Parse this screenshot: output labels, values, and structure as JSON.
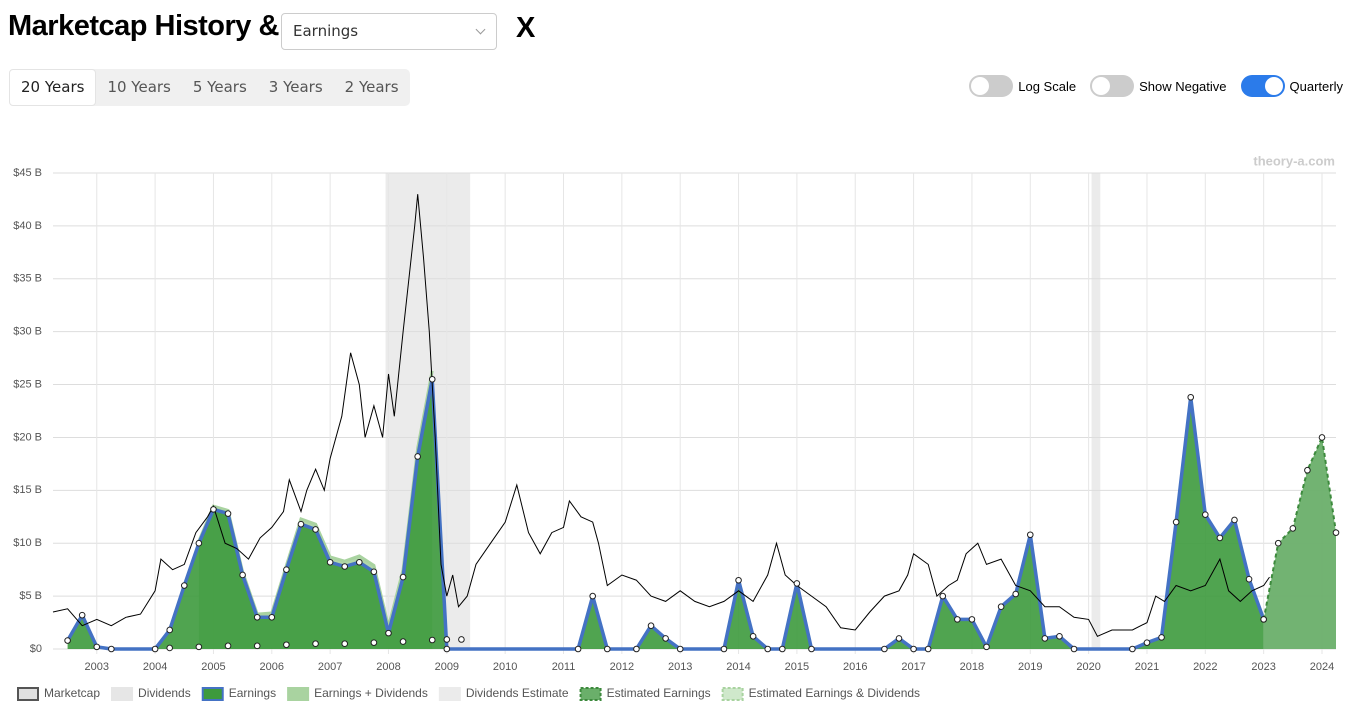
{
  "header": {
    "title": "Marketcap History &",
    "dropdown": "Earnings",
    "close": "X"
  },
  "ranges": [
    "20 Years",
    "10 Years",
    "5 Years",
    "3 Years",
    "2 Years"
  ],
  "toggles": [
    "Log Scale",
    "Show Negative",
    "Quarterly"
  ],
  "chart_data": {
    "type": "area",
    "watermark": "theory-a.com",
    "xlim": [
      2002.25,
      2024.24
    ],
    "xticks": [
      2003,
      2004,
      2005,
      2006,
      2007,
      2008,
      2009,
      2010,
      2011,
      2012,
      2013,
      2014,
      2015,
      2016,
      2017,
      2018,
      2019,
      2020,
      2021,
      2022,
      2023,
      2024
    ],
    "ylim": [
      0,
      45
    ],
    "yticks": [
      {
        "value": 0,
        "label": "$0"
      },
      {
        "value": 5,
        "label": "$5 B"
      },
      {
        "value": 10,
        "label": "$10 B"
      },
      {
        "value": 15,
        "label": "$15 B"
      },
      {
        "value": 20,
        "label": "$20 B"
      },
      {
        "value": 25,
        "label": "$25 B"
      },
      {
        "value": 30,
        "label": "$30 B"
      },
      {
        "value": 35,
        "label": "$35 B"
      },
      {
        "value": 40,
        "label": "$40 B"
      },
      {
        "value": 45,
        "label": "$45 B"
      }
    ],
    "grid": true,
    "bands": [
      [
        2007.95,
        2009.4
      ],
      [
        2020.05,
        2020.2
      ]
    ],
    "series": [
      {
        "name": "Marketcap",
        "color": "#000000",
        "x": [
          2002.25,
          2002.5,
          2002.75,
          2003.0,
          2003.25,
          2003.5,
          2003.75,
          2004.0,
          2004.1,
          2004.3,
          2004.5,
          2004.7,
          2004.9,
          2005.0,
          2005.2,
          2005.4,
          2005.6,
          2005.8,
          2006.0,
          2006.2,
          2006.3,
          2006.5,
          2006.6,
          2006.75,
          2006.9,
          2007.0,
          2007.2,
          2007.35,
          2007.5,
          2007.6,
          2007.75,
          2007.9,
          2008.0,
          2008.1,
          2008.25,
          2008.35,
          2008.45,
          2008.5,
          2008.6,
          2008.7,
          2008.8,
          2008.9,
          2009.0,
          2009.1,
          2009.2,
          2009.35,
          2009.5,
          2009.75,
          2010.0,
          2010.2,
          2010.4,
          2010.6,
          2010.8,
          2011.0,
          2011.1,
          2011.3,
          2011.5,
          2011.6,
          2011.75,
          2012.0,
          2012.25,
          2012.5,
          2012.75,
          2013.0,
          2013.25,
          2013.5,
          2013.75,
          2014.0,
          2014.25,
          2014.5,
          2014.65,
          2014.8,
          2015.0,
          2015.25,
          2015.5,
          2015.75,
          2016.0,
          2016.25,
          2016.5,
          2016.75,
          2016.9,
          2017.0,
          2017.25,
          2017.4,
          2017.6,
          2017.75,
          2017.9,
          2018.1,
          2018.25,
          2018.5,
          2018.75,
          2019.0,
          2019.25,
          2019.5,
          2019.75,
          2020.0,
          2020.15,
          2020.4,
          2020.75,
          2021.0,
          2021.15,
          2021.3,
          2021.5,
          2021.75,
          2022.0,
          2022.25,
          2022.4,
          2022.6,
          2022.8,
          2023.0,
          2023.1
        ],
        "values": [
          3.5,
          3.8,
          2.2,
          2.8,
          2.2,
          3.0,
          3.3,
          5.5,
          8.5,
          7.5,
          8.0,
          11,
          12.5,
          13.5,
          10,
          9.5,
          8.5,
          10.5,
          11.5,
          13,
          16,
          13,
          15,
          17,
          15,
          18,
          22,
          28,
          25,
          20,
          23,
          20,
          26,
          22,
          30,
          35,
          40,
          43,
          37,
          30,
          20,
          8,
          5,
          7,
          4,
          5,
          8,
          10,
          12,
          15.5,
          11,
          9,
          11,
          11.5,
          14,
          12.5,
          12,
          10,
          6,
          7,
          6.5,
          5,
          4.5,
          5.5,
          4.5,
          4,
          4.5,
          5.5,
          4.5,
          7,
          10,
          7,
          6,
          5,
          4,
          2,
          1.8,
          3.5,
          5,
          5.5,
          7,
          9,
          8,
          5,
          6,
          6.5,
          9,
          10,
          8,
          8.5,
          6,
          5.5,
          4,
          4,
          3,
          2.8,
          1.2,
          1.8,
          1.8,
          2.5,
          5,
          4.5,
          6,
          5.5,
          6,
          8.5,
          5.5,
          4.5,
          5.5,
          6,
          6.8
        ]
      },
      {
        "name": "Dividends",
        "color": "#e6e6e6",
        "x": [
          2004.25,
          2004.75,
          2005.25,
          2005.75,
          2006.25,
          2006.75,
          2007.25,
          2007.75,
          2008.25,
          2008.75,
          2009.0,
          2009.25
        ],
        "values": [
          0.1,
          0.2,
          0.3,
          0.3,
          0.4,
          0.5,
          0.5,
          0.6,
          0.7,
          0.85,
          0.9,
          0.9
        ]
      },
      {
        "name": "Earnings",
        "color": "#4472c4",
        "x": [
          2002.5,
          2002.75,
          2003.0,
          2003.25,
          2004.0,
          2004.25,
          2004.5,
          2004.75,
          2005.0,
          2005.25,
          2005.5,
          2005.75,
          2006.0,
          2006.25,
          2006.5,
          2006.75,
          2007.0,
          2007.25,
          2007.5,
          2007.75,
          2008.0,
          2008.25,
          2008.5,
          2008.75,
          2009.0,
          2011.25,
          2011.5,
          2011.75,
          2012.25,
          2012.5,
          2012.75,
          2013.0,
          2013.75,
          2014.0,
          2014.25,
          2014.5,
          2014.75,
          2015.0,
          2015.25,
          2016.5,
          2016.75,
          2017.0,
          2017.25,
          2017.5,
          2017.75,
          2018.0,
          2018.25,
          2018.5,
          2018.75,
          2019.0,
          2019.25,
          2019.5,
          2019.75,
          2020.75,
          2021.0,
          2021.25,
          2021.5,
          2021.75,
          2022.0,
          2022.25,
          2022.5,
          2022.75,
          2023.0
        ],
        "values": [
          0.8,
          3.2,
          0.2,
          0,
          0,
          1.8,
          6,
          10,
          13.2,
          12.8,
          7,
          3,
          3,
          7.5,
          11.8,
          11.3,
          8.2,
          7.8,
          8.2,
          7.3,
          1.5,
          6.8,
          18.2,
          25.5,
          0,
          0,
          5,
          0,
          0,
          2.2,
          1,
          0,
          0,
          6.5,
          1.2,
          0,
          0,
          6.2,
          0,
          0,
          1,
          0,
          0,
          5,
          2.8,
          2.8,
          0.2,
          4,
          5.2,
          10.8,
          1,
          1.2,
          0,
          0,
          0.6,
          1.1,
          12,
          23.8,
          12.7,
          10.5,
          12.2,
          6.6,
          2.8
        ]
      },
      {
        "name": "Earnings + Dividends",
        "color": "#a9d3a0",
        "x": [
          2004.75,
          2005.0,
          2005.25,
          2005.5,
          2005.75,
          2006.0,
          2006.25,
          2006.5,
          2006.75,
          2007.0,
          2007.25,
          2007.5,
          2007.75,
          2008.0,
          2008.25,
          2008.5,
          2008.75
        ],
        "values": [
          10.2,
          13.5,
          13.1,
          7.3,
          3.3,
          3.4,
          7.9,
          12.3,
          11.8,
          8.7,
          8.3,
          8.8,
          7.9,
          2.1,
          7.5,
          19,
          26.3
        ]
      },
      {
        "name": "Dividends Estimate",
        "color": "#ebebeb",
        "x": [],
        "values": []
      },
      {
        "name": "Estimated Earnings",
        "color": "#6aaf6a",
        "x": [
          2023.0,
          2023.25,
          2023.5,
          2023.75,
          2024.0,
          2024.24
        ],
        "values": [
          2.8,
          10,
          11.4,
          16.9,
          20,
          11
        ]
      },
      {
        "name": "Estimated Earnings & Dividends",
        "color": "#cfe8cb",
        "x": [],
        "values": []
      }
    ]
  }
}
